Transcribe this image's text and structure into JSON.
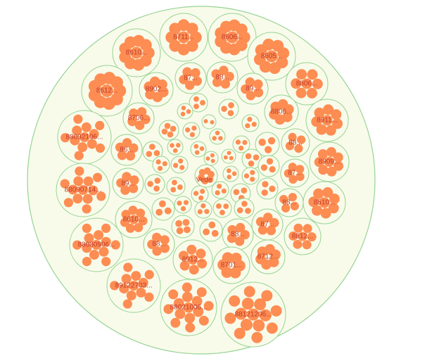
{
  "chart_data": {
    "type": "circle-packing",
    "root_label": "Vede",
    "colors": {
      "leaf": "#fd8d52",
      "group_fill": "#f8fbea",
      "group_stroke": "#97d394",
      "label": "#c0392b"
    },
    "groups": [
      {
        "label": "8711...",
        "leaves": 9
      },
      {
        "label": "8606...",
        "leaves": 10
      },
      {
        "label": "8610...",
        "leaves": 10
      },
      {
        "label": "8605...",
        "leaves": 9
      },
      {
        "label": "8612...",
        "leaves": 10
      },
      {
        "label": "8902...",
        "leaves": 6
      },
      {
        "label": "87...",
        "leaves": 5
      },
      {
        "label": "88...",
        "leaves": 5
      },
      {
        "label": "89...",
        "leaves": 5
      },
      {
        "label": "8806...",
        "leaves": 7
      },
      {
        "label": "8806...",
        "leaves": 6
      },
      {
        "label": "8706...",
        "leaves": 5
      },
      {
        "label": "8911...",
        "leaves": 8
      },
      {
        "label": "88092106...",
        "leaves": 12
      },
      {
        "label": "86...",
        "leaves": 5
      },
      {
        "label": "88...",
        "leaves": 4
      },
      {
        "label": "8909...",
        "leaves": 8
      },
      {
        "label": "87...",
        "leaves": 5
      },
      {
        "label": "88090714...",
        "leaves": 13
      },
      {
        "label": "89...",
        "leaves": 5
      },
      {
        "label": "8510...",
        "leaves": 8
      },
      {
        "label": "88...",
        "leaves": 4
      },
      {
        "label": "8610...",
        "leaves": 8
      },
      {
        "label": "87...",
        "leaves": 5
      },
      {
        "label": "8812...",
        "leaves": 7
      },
      {
        "label": "88080906...",
        "leaves": 13
      },
      {
        "label": "88...",
        "leaves": 5
      },
      {
        "label": "88...",
        "leaves": 5
      },
      {
        "label": "8712...",
        "leaves": 6
      },
      {
        "label": "8912...",
        "leaves": 7
      },
      {
        "label": "8701...",
        "leaves": 6
      },
      {
        "label": "89122703...",
        "leaves": 12
      },
      {
        "label": "88021006...",
        "leaves": 15
      },
      {
        "label": "88121206...",
        "leaves": 15
      }
    ]
  }
}
